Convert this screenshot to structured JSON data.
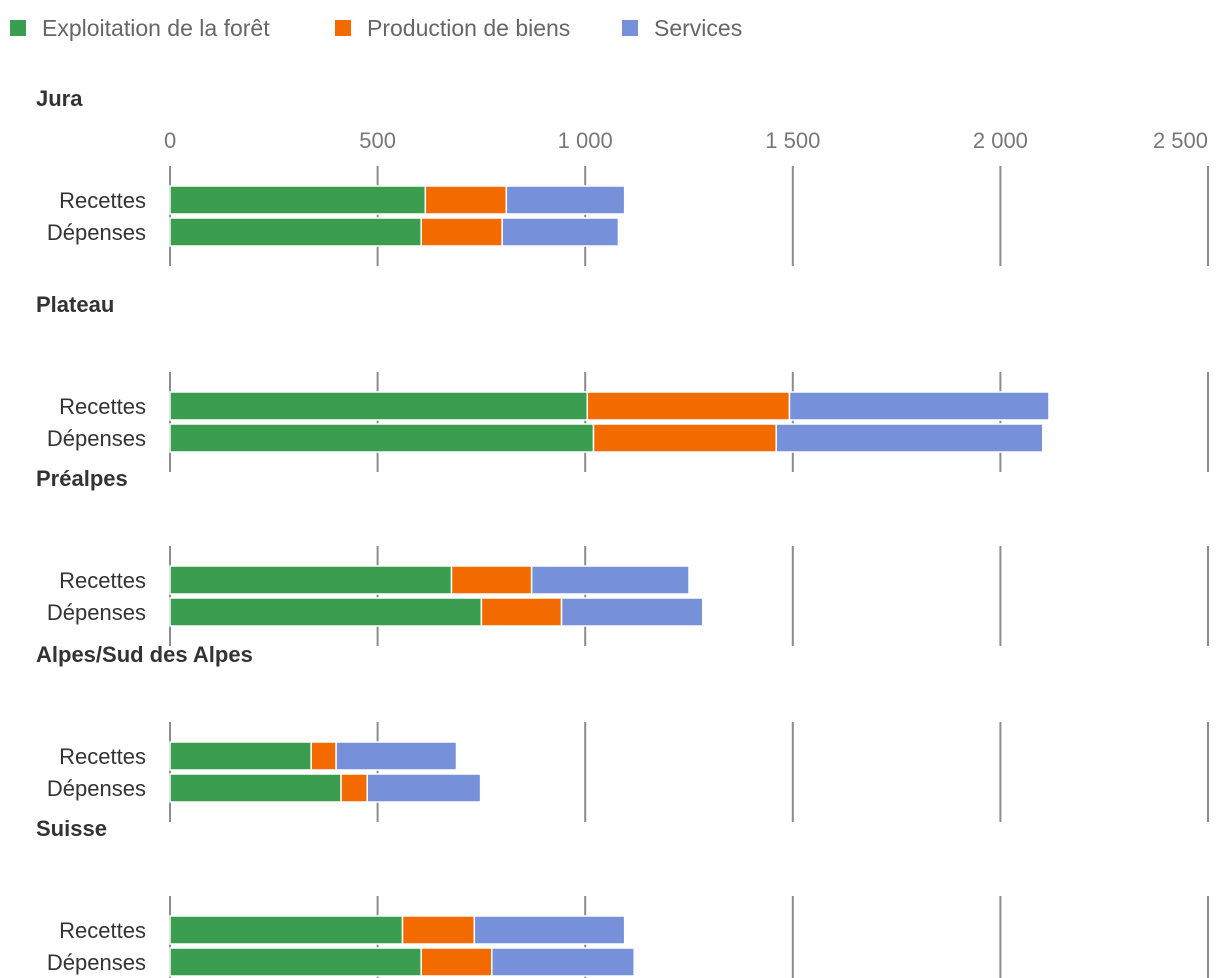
{
  "chart_data": {
    "type": "bar",
    "orientation": "horizontal",
    "stacked": true,
    "legend_position": "top-left",
    "grid": true,
    "xlim": [
      0,
      2500
    ],
    "x_ticks": [
      0,
      500,
      1000,
      1500,
      2000,
      2500
    ],
    "x_tick_labels": [
      "0",
      "500",
      "1 000",
      "1 500",
      "2 000",
      "2 500"
    ],
    "series": [
      {
        "name": "Exploitation de la forêt",
        "color": "#3a9d4f"
      },
      {
        "name": "Production de biens",
        "color": "#f26a00"
      },
      {
        "name": "Services",
        "color": "#7690d9"
      }
    ],
    "panels": [
      {
        "title": "Jura",
        "rows": [
          {
            "label": "Recettes",
            "values": [
              615,
              195,
              285
            ]
          },
          {
            "label": "Dépenses",
            "values": [
              605,
              195,
              280
            ]
          }
        ]
      },
      {
        "title": "Plateau",
        "rows": [
          {
            "label": "Recettes",
            "values": [
              1005,
              487,
              625
            ]
          },
          {
            "label": "Dépenses",
            "values": [
              1020,
              440,
              642
            ]
          }
        ]
      },
      {
        "title": "Préalpes",
        "rows": [
          {
            "label": "Recettes",
            "values": [
              678,
              193,
              379
            ]
          },
          {
            "label": "Dépenses",
            "values": [
              750,
              193,
              340
            ]
          }
        ]
      },
      {
        "title": "Alpes/Sud des Alpes",
        "rows": [
          {
            "label": "Recettes",
            "values": [
              340,
              60,
              290
            ]
          },
          {
            "label": "Dépenses",
            "values": [
              412,
              63,
              273
            ]
          }
        ]
      },
      {
        "title": "Suisse",
        "rows": [
          {
            "label": "Recettes",
            "values": [
              560,
              173,
              362
            ]
          },
          {
            "label": "Dépenses",
            "values": [
              605,
              170,
              343
            ]
          }
        ]
      }
    ]
  }
}
